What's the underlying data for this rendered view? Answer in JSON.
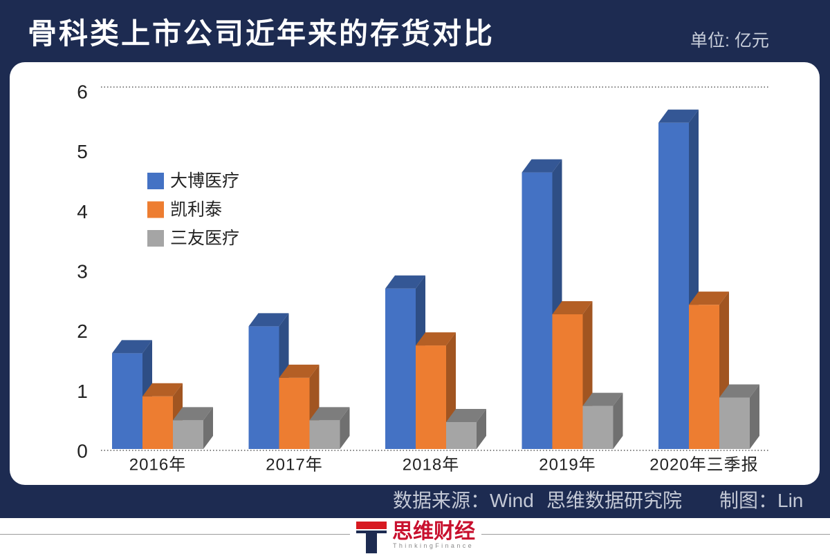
{
  "chart_data": {
    "type": "bar",
    "3d": true,
    "title": "骨科类上市公司近年来的存货对比",
    "unit": "单位: 亿元",
    "categories": [
      "2016年",
      "2017年",
      "2018年",
      "2019年",
      "2020年三季报"
    ],
    "series": [
      {
        "name": "大博医疗",
        "color": "#4472c4",
        "values": [
          1.6,
          2.05,
          2.68,
          4.62,
          5.45
        ]
      },
      {
        "name": "凯利泰",
        "color": "#ed7d31",
        "values": [
          0.88,
          1.19,
          1.73,
          2.25,
          2.41
        ]
      },
      {
        "name": "三友医疗",
        "color": "#a5a5a5",
        "values": [
          0.48,
          0.48,
          0.45,
          0.72,
          0.86
        ]
      }
    ],
    "y_ticks": [
      0,
      1,
      2,
      3,
      4,
      5,
      6
    ],
    "ylim": [
      0,
      6
    ],
    "grid": false,
    "dotted_lines_at": [
      0,
      6
    ],
    "legend_position": "upper-left"
  },
  "footer": {
    "source": "数据来源：Wind",
    "org": "思维数据研究院",
    "credit": "制图：Lin"
  },
  "brand": {
    "name": "思维财经",
    "tagline": "ThinkingFinance",
    "icon": "thinking-finance-logo-icon"
  },
  "colors": {
    "frame": "#1d2b51",
    "panel": "#ffffff",
    "brand_red": "#c8102e",
    "footer_text": "#c4c9d6"
  }
}
